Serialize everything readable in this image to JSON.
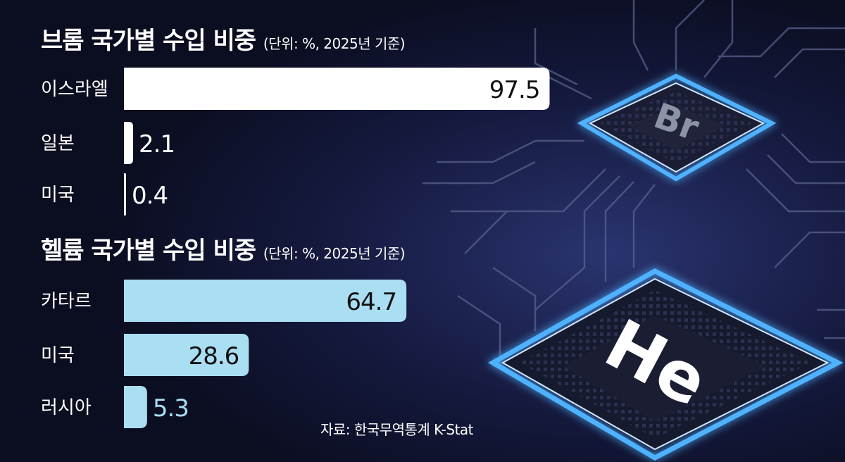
{
  "colors": {
    "background": "#0d0f24",
    "bromine_bar": "#ffffff",
    "helium_bar": "#a9def3",
    "bromine_value_text": "#ffffff",
    "helium_value_text": "#a9def3",
    "chip_glow": "#4fb2ff"
  },
  "chips": {
    "top_label": "Br",
    "bottom_label": "He"
  },
  "source": "자료: 한국무역통계 K-Stat",
  "chart_data": [
    {
      "type": "bar",
      "orientation": "horizontal",
      "title": "브롬 국가별 수입 비중",
      "subtitle": "(단위: %, 2025년 기준)",
      "categories": [
        "이스라엘",
        "일본",
        "미국"
      ],
      "values": [
        97.5,
        2.1,
        0.4
      ],
      "value_labels": [
        "97.5",
        "2.1",
        "0.4"
      ],
      "xlim": [
        0,
        100
      ],
      "grid": false
    },
    {
      "type": "bar",
      "orientation": "horizontal",
      "title": "헬륨 국가별 수입 비중",
      "subtitle": "(단위: %, 2025년 기준)",
      "categories": [
        "카타르",
        "미국",
        "러시아"
      ],
      "values": [
        64.7,
        28.6,
        5.3
      ],
      "value_labels": [
        "64.7",
        "28.6",
        "5.3"
      ],
      "xlim": [
        0,
        100
      ],
      "grid": false
    }
  ]
}
